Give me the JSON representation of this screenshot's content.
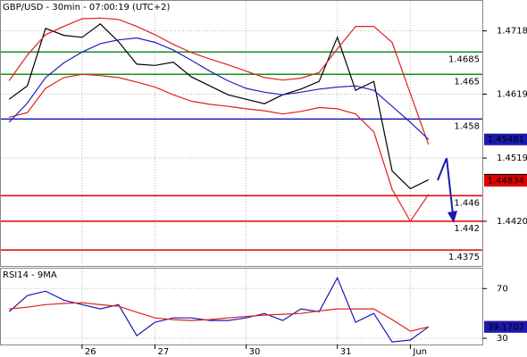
{
  "chart_data": [
    {
      "type": "line",
      "title": "GBP/USD - 30min - 07:00:19 (UTC+2)",
      "categories": [
        null,
        null,
        null,
        null,
        "26",
        null,
        null,
        null,
        "27",
        null,
        null,
        null,
        null,
        "30",
        null,
        null,
        null,
        null,
        "31",
        null,
        null,
        null,
        "Jun",
        null
      ],
      "series": [
        {
          "color": "#000000",
          "values": [
            1.4611,
            1.4632,
            1.4722,
            1.4711,
            1.4708,
            1.4729,
            1.4701,
            1.4666,
            1.4664,
            1.4669,
            1.4646,
            1.4632,
            1.4618,
            1.4611,
            1.4604,
            1.4618,
            1.4627,
            1.4639,
            1.4708,
            1.4625,
            1.4639,
            1.4499,
            1.4471,
            1.4485
          ]
        },
        {
          "color": "#e02020",
          "values": [
            1.464,
            1.468,
            1.4712,
            1.4725,
            1.4737,
            1.4738,
            1.4736,
            1.4725,
            1.4712,
            1.4697,
            1.4684,
            1.4674,
            1.4665,
            1.4655,
            1.4645,
            1.4641,
            1.4644,
            1.4653,
            1.469,
            1.4725,
            1.4725,
            1.47,
            1.462,
            1.454
          ]
        },
        {
          "color": "#e02020",
          "values": [
            1.4583,
            1.459,
            1.4628,
            1.4645,
            1.465,
            1.4648,
            1.4645,
            1.4638,
            1.463,
            1.4618,
            1.4608,
            1.4603,
            1.46,
            1.4596,
            1.4593,
            1.4588,
            1.4592,
            1.4598,
            1.4596,
            1.4588,
            1.456,
            1.447,
            1.442,
            1.4462
          ]
        },
        {
          "color": "#2020c0",
          "values": [
            1.4575,
            1.4605,
            1.4645,
            1.4668,
            1.4685,
            1.4698,
            1.4704,
            1.4707,
            1.47,
            1.4688,
            1.4672,
            1.4655,
            1.464,
            1.4628,
            1.4622,
            1.4618,
            1.4622,
            1.4627,
            1.463,
            1.4632,
            1.4625,
            1.46,
            1.4575,
            1.4548
          ]
        }
      ],
      "ylim": [
        1.435,
        1.4765
      ],
      "yticks": [
        {
          "value": 1.442,
          "label": "1.4420"
        },
        1.4519,
        1.4619,
        1.4718
      ],
      "grid": true,
      "levels": [
        {
          "value": 1.4685,
          "color": "#1a8c1a"
        },
        {
          "value": 1.465,
          "color": "#1a8c1a"
        },
        {
          "value": 1.458,
          "color": "#1a1ab0"
        },
        {
          "value": 1.446,
          "color": "#e00000"
        },
        {
          "value": 1.442,
          "color": "#e00000"
        },
        {
          "value": 1.4375,
          "color": "#e00000"
        }
      ],
      "markers": [
        {
          "value": 1.45481,
          "color": "#1a1ab0"
        },
        {
          "value": 1.4485,
          "color": "#000000"
        },
        {
          "value": 1.44834,
          "color": "#e00000"
        }
      ]
    },
    {
      "type": "line",
      "title": "RSI14 - 9MA",
      "series": [
        {
          "color": "#1a1ab0",
          "values": [
            51.4,
            64.3,
            67.9,
            60.7,
            57.1,
            53.6,
            57.1,
            32.1,
            42.9,
            46.4,
            46.4,
            44.3,
            44.3,
            46.4,
            50.0,
            44.3,
            53.6,
            51.4,
            78.6,
            42.9,
            50.0,
            27.1,
            28.6,
            39.2
          ]
        },
        {
          "color": "#e02020",
          "values": [
            53.6,
            55,
            57.1,
            58,
            58.6,
            57,
            55.7,
            51,
            46.4,
            45,
            44.3,
            45,
            46.4,
            47.5,
            48.6,
            49.3,
            50.0,
            52,
            53.6,
            53.6,
            53.6,
            45,
            35.7,
            39.2
          ]
        }
      ],
      "ylim": [
        25,
        86
      ],
      "yticks": [
        30,
        70
      ],
      "grid": true,
      "markers": [
        {
          "value": 39.2414,
          "color": "#e00000"
        },
        {
          "value": 39.1707,
          "color": "#1a1ab0"
        }
      ]
    }
  ]
}
